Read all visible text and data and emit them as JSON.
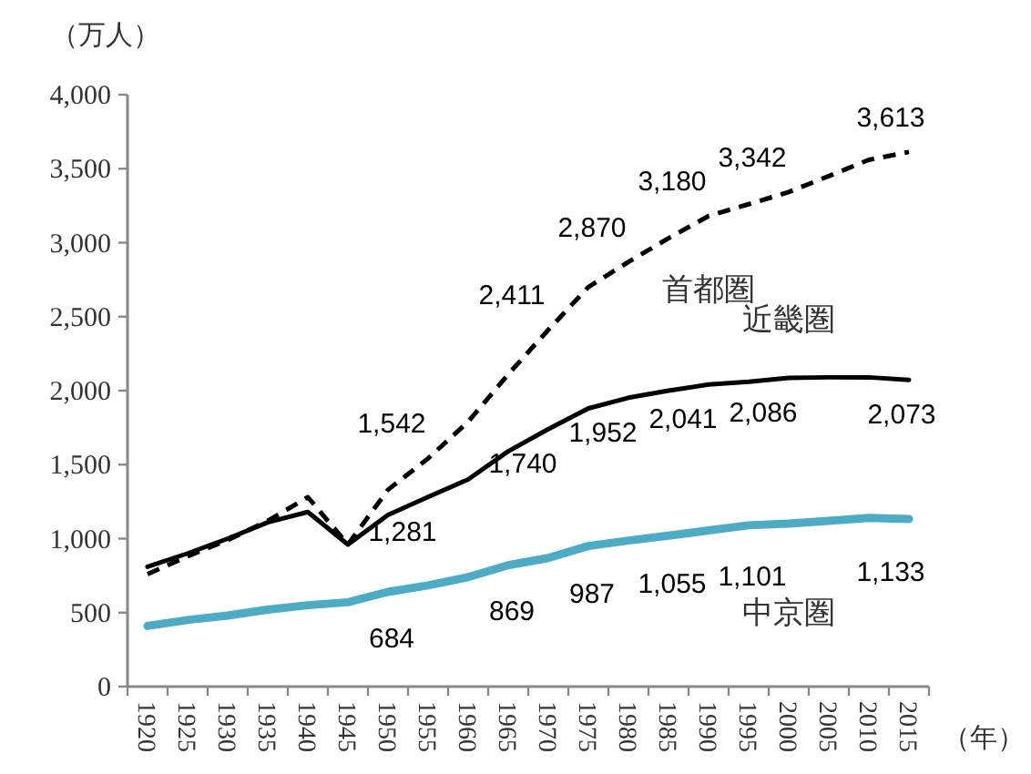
{
  "chart_data": {
    "type": "line",
    "ylabel": "（万人）",
    "xlabel": "（年）",
    "categories": [
      "1920",
      "1925",
      "1930",
      "1935",
      "1940",
      "1945",
      "1950",
      "1955",
      "1960",
      "1965",
      "1970",
      "1975",
      "1980",
      "1985",
      "1990",
      "1995",
      "2000",
      "2005",
      "2010",
      "2015"
    ],
    "ylim": [
      0,
      4000
    ],
    "yticks": [
      0,
      500,
      {
        "value": 1000,
        "label": "1,000"
      },
      {
        "value": 1500,
        "label": "1,500"
      },
      {
        "value": 2000,
        "label": "2,000"
      },
      {
        "value": 2500,
        "label": "2,500"
      },
      {
        "value": 3000,
        "label": "3,000"
      },
      {
        "value": 3500,
        "label": "3,500"
      },
      {
        "value": 4000,
        "label": "4,000"
      }
    ],
    "grid": false,
    "legend": false,
    "series": [
      {
        "name": "首都圏",
        "color": "#000000",
        "line_style": "dashed",
        "values": [
          760,
          880,
          990,
          1120,
          1280,
          960,
          1330,
          1542,
          1790,
          2110,
          2411,
          2700,
          2870,
          3030,
          3180,
          3260,
          3342,
          3450,
          3560,
          3613
        ],
        "value_labels": [
          null,
          null,
          null,
          null,
          null,
          null,
          null,
          "1,542",
          null,
          null,
          "2,411",
          null,
          "2,870",
          null,
          "3,180",
          null,
          "3,342",
          null,
          null,
          "3,613"
        ]
      },
      {
        "name": "近畿圏",
        "color": "#000000",
        "line_style": "solid",
        "values": [
          810,
          900,
          1000,
          1110,
          1180,
          960,
          1160,
          1281,
          1400,
          1590,
          1740,
          1880,
          1952,
          2000,
          2041,
          2060,
          2086,
          2090,
          2090,
          2073
        ],
        "value_labels": [
          null,
          null,
          null,
          null,
          null,
          null,
          null,
          "1,281",
          null,
          null,
          "1,740",
          null,
          "1,952",
          null,
          "2,041",
          null,
          "2,086",
          null,
          null,
          "2,073"
        ]
      },
      {
        "name": "中京圏",
        "color": "#4bacc6",
        "line_style": "solid",
        "values": [
          410,
          450,
          480,
          520,
          550,
          570,
          640,
          684,
          740,
          820,
          869,
          950,
          987,
          1020,
          1055,
          1090,
          1101,
          1120,
          1140,
          1133
        ],
        "value_labels": [
          null,
          null,
          null,
          null,
          null,
          null,
          null,
          "684",
          null,
          null,
          "869",
          null,
          "987",
          null,
          "1,055",
          null,
          "1,101",
          null,
          null,
          "1,133"
        ]
      }
    ]
  }
}
